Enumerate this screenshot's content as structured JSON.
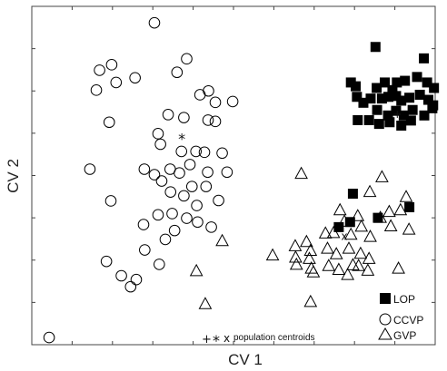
{
  "chart_data": {
    "type": "scatter",
    "title": "",
    "xlabel": "CV 1",
    "ylabel": "CV 2",
    "xlim": [
      -5,
      5
    ],
    "ylim": [
      -4,
      4
    ],
    "xticks": [
      -4,
      -3,
      -2,
      -1,
      0,
      1,
      2,
      3,
      4
    ],
    "yticks": [
      -3,
      -2,
      -1,
      0,
      1,
      2,
      3
    ],
    "grid": false,
    "legend_position": "bottom-right",
    "series": [
      {
        "name": "LOP",
        "marker": "filled-square",
        "color": "#000000",
        "points": [
          [
            3.52,
            3.04
          ],
          [
            4.72,
            2.77
          ],
          [
            2.91,
            2.2
          ],
          [
            3.03,
            2.11
          ],
          [
            3.55,
            2.07
          ],
          [
            3.75,
            2.2
          ],
          [
            3.94,
            2.02
          ],
          [
            4.05,
            2.2
          ],
          [
            4.25,
            2.24
          ],
          [
            4.55,
            2.33
          ],
          [
            4.8,
            2.2
          ],
          [
            4.97,
            2.07
          ],
          [
            3.06,
            1.86
          ],
          [
            3.22,
            1.72
          ],
          [
            3.4,
            1.82
          ],
          [
            3.68,
            1.82
          ],
          [
            3.84,
            1.86
          ],
          [
            4.03,
            1.88
          ],
          [
            4.16,
            1.77
          ],
          [
            4.36,
            1.84
          ],
          [
            4.62,
            1.91
          ],
          [
            4.83,
            1.79
          ],
          [
            4.95,
            1.66
          ],
          [
            3.56,
            1.55
          ],
          [
            3.83,
            1.42
          ],
          [
            4.03,
            1.53
          ],
          [
            4.22,
            1.42
          ],
          [
            4.44,
            1.55
          ],
          [
            4.73,
            1.42
          ],
          [
            4.93,
            1.59
          ],
          [
            3.08,
            1.31
          ],
          [
            3.36,
            1.31
          ],
          [
            3.61,
            1.22
          ],
          [
            3.87,
            1.26
          ],
          [
            4.16,
            1.18
          ],
          [
            4.4,
            1.3
          ],
          [
            2.96,
            -0.43
          ],
          [
            2.61,
            -1.22
          ],
          [
            2.89,
            -1.1
          ],
          [
            3.58,
            -1.0
          ],
          [
            4.36,
            -0.75
          ]
        ]
      },
      {
        "name": "CCVP",
        "marker": "open-circle",
        "color": "#000000",
        "points": [
          [
            -1.96,
            3.61
          ],
          [
            -3.32,
            2.49
          ],
          [
            -3.02,
            2.62
          ],
          [
            -3.4,
            2.02
          ],
          [
            -2.91,
            2.2
          ],
          [
            -2.44,
            2.31
          ],
          [
            -1.4,
            2.44
          ],
          [
            -1.16,
            2.76
          ],
          [
            -3.08,
            1.26
          ],
          [
            -0.62,
            2.0
          ],
          [
            -0.83,
            1.91
          ],
          [
            -0.45,
            1.73
          ],
          [
            -0.02,
            1.75
          ],
          [
            -1.62,
            1.44
          ],
          [
            -1.23,
            1.37
          ],
          [
            -0.63,
            1.31
          ],
          [
            -0.45,
            1.28
          ],
          [
            -1.87,
            0.99
          ],
          [
            -1.81,
            0.74
          ],
          [
            -1.29,
            0.57
          ],
          [
            -0.72,
            0.55
          ],
          [
            -0.93,
            0.57
          ],
          [
            -0.28,
            0.53
          ],
          [
            -3.56,
            0.15
          ],
          [
            -2.21,
            0.15
          ],
          [
            -1.96,
            0.02
          ],
          [
            -1.57,
            0.15
          ],
          [
            -1.34,
            0.06
          ],
          [
            -1.08,
            0.26
          ],
          [
            -0.64,
            0.08
          ],
          [
            -0.16,
            0.08
          ],
          [
            -1.78,
            -0.13
          ],
          [
            -1.03,
            -0.26
          ],
          [
            -0.68,
            -0.26
          ],
          [
            -1.56,
            -0.39
          ],
          [
            -1.23,
            -0.48
          ],
          [
            -0.91,
            -0.71
          ],
          [
            -0.37,
            -0.59
          ],
          [
            -3.04,
            -0.6
          ],
          [
            -1.87,
            -0.93
          ],
          [
            -1.52,
            -0.9
          ],
          [
            -1.16,
            -1.01
          ],
          [
            -0.89,
            -1.1
          ],
          [
            -0.55,
            -1.22
          ],
          [
            -1.46,
            -1.3
          ],
          [
            -2.23,
            -1.16
          ],
          [
            -1.69,
            -1.51
          ],
          [
            -3.15,
            -2.03
          ],
          [
            -2.2,
            -1.76
          ],
          [
            -1.84,
            -2.1
          ],
          [
            -2.78,
            -2.37
          ],
          [
            -2.41,
            -2.46
          ],
          [
            -2.55,
            -2.63
          ],
          [
            -4.57,
            -3.83
          ]
        ]
      },
      {
        "name": "GVP",
        "marker": "open-triangle",
        "color": "#000000",
        "points": [
          [
            1.68,
            0.04
          ],
          [
            3.38,
            -0.39
          ],
          [
            3.68,
            -0.04
          ],
          [
            2.64,
            -0.82
          ],
          [
            3.08,
            -0.96
          ],
          [
            3.86,
            -0.86
          ],
          [
            4.28,
            -0.51
          ],
          [
            4.35,
            -1.28
          ],
          [
            3.64,
            -1.0
          ],
          [
            3.9,
            -1.2
          ],
          [
            2.75,
            -1.09
          ],
          [
            4.14,
            -0.82
          ],
          [
            2.28,
            -1.37
          ],
          [
            2.48,
            -1.36
          ],
          [
            2.91,
            -1.4
          ],
          [
            3.17,
            -1.21
          ],
          [
            3.39,
            -1.45
          ],
          [
            1.53,
            -1.67
          ],
          [
            1.81,
            -1.57
          ],
          [
            1.91,
            -1.78
          ],
          [
            2.33,
            -1.73
          ],
          [
            2.55,
            -1.86
          ],
          [
            2.86,
            -1.73
          ],
          [
            3.15,
            -1.85
          ],
          [
            3.36,
            -1.97
          ],
          [
            1.56,
            -2.11
          ],
          [
            1.93,
            -2.2
          ],
          [
            2.36,
            -2.14
          ],
          [
            2.61,
            -2.23
          ],
          [
            2.83,
            -2.35
          ],
          [
            3.1,
            -2.14
          ],
          [
            3.33,
            -2.25
          ],
          [
            1.54,
            -1.94
          ],
          [
            -0.28,
            -1.55
          ],
          [
            1.98,
            -2.29
          ],
          [
            -0.92,
            -2.26
          ],
          [
            1.91,
            -2.99
          ],
          [
            4.09,
            -2.2
          ],
          [
            1.88,
            -1.97
          ],
          [
            -0.7,
            -3.04
          ],
          [
            2.96,
            -2.12
          ],
          [
            0.97,
            -1.89
          ]
        ]
      }
    ],
    "centroids": [
      {
        "symbol": "+",
        "x": 4.06,
        "y": 1.47
      },
      {
        "symbol": "*",
        "x": -1.28,
        "y": 0.86
      },
      {
        "symbol": "x",
        "x": 2.75,
        "y": -1.42
      }
    ],
    "legend": [
      {
        "label": "LOP",
        "marker": "filled-square"
      },
      {
        "label": "CCVP",
        "marker": "open-circle"
      },
      {
        "label": "GVP",
        "marker": "open-triangle"
      }
    ],
    "centroid_note": {
      "symbols": [
        "+",
        "*",
        "x"
      ],
      "label": "population centroids"
    }
  }
}
